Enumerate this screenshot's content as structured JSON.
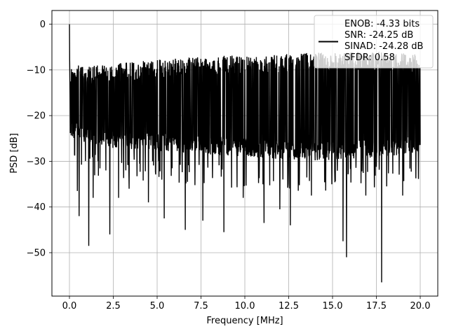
{
  "chart_data": {
    "type": "line",
    "xlabel": "Frequency [MHz]",
    "ylabel": "PSD [dB]",
    "xlim": [
      -1.0,
      21.0
    ],
    "ylim": [
      -59.5,
      3.0
    ],
    "grid": true,
    "legend_position": "top-right",
    "line_color": "#000000",
    "x_ticks": [
      0.0,
      2.5,
      5.0,
      7.5,
      10.0,
      12.5,
      15.0,
      17.5,
      20.0
    ],
    "x_tick_labels": [
      "0.0",
      "2.5",
      "5.0",
      "7.5",
      "10.0",
      "12.5",
      "15.0",
      "17.5",
      "20.0"
    ],
    "y_ticks": [
      0,
      -10,
      -20,
      -30,
      -40,
      -50
    ],
    "y_tick_labels": [
      "0",
      "−10",
      "−20",
      "−30",
      "−40",
      "−50"
    ],
    "legend": {
      "lines": [
        "ENOB: -4.33 bits",
        "SNR: -24.25 dB",
        "SINAD: -24.28 dB",
        "SFDR: 0.58"
      ]
    },
    "series": [
      {
        "color": "#000000",
        "x_range": [
          0.0,
          20.0
        ],
        "start_value": 0.0,
        "band_upper": [
          [
            0,
            -9
          ],
          [
            2,
            -9
          ],
          [
            4,
            -8
          ],
          [
            8,
            -7
          ],
          [
            12,
            -6.5
          ],
          [
            16,
            -6
          ],
          [
            20,
            -6.5
          ]
        ],
        "band_lower": [
          [
            0,
            -25
          ],
          [
            2,
            -27
          ],
          [
            6,
            -28
          ],
          [
            10,
            -29
          ],
          [
            14,
            -30
          ],
          [
            18,
            -29
          ],
          [
            20,
            -28
          ]
        ],
        "notable_dips": [
          [
            0.45,
            -36.5
          ],
          [
            0.55,
            -42.0
          ],
          [
            1.1,
            -48.5
          ],
          [
            1.35,
            -38.0
          ],
          [
            2.3,
            -46.0
          ],
          [
            2.8,
            -38.0
          ],
          [
            3.4,
            -36.0
          ],
          [
            4.5,
            -39.0
          ],
          [
            5.4,
            -42.5
          ],
          [
            6.6,
            -45.0
          ],
          [
            7.6,
            -43.0
          ],
          [
            8.8,
            -45.5
          ],
          [
            9.9,
            -38.0
          ],
          [
            11.1,
            -43.5
          ],
          [
            12.0,
            -40.5
          ],
          [
            12.6,
            -44.0
          ],
          [
            13.8,
            -37.5
          ],
          [
            15.6,
            -47.5
          ],
          [
            15.8,
            -51.0
          ],
          [
            16.9,
            -37.5
          ],
          [
            17.8,
            -56.5
          ],
          [
            19.0,
            -37.5
          ]
        ]
      }
    ]
  }
}
